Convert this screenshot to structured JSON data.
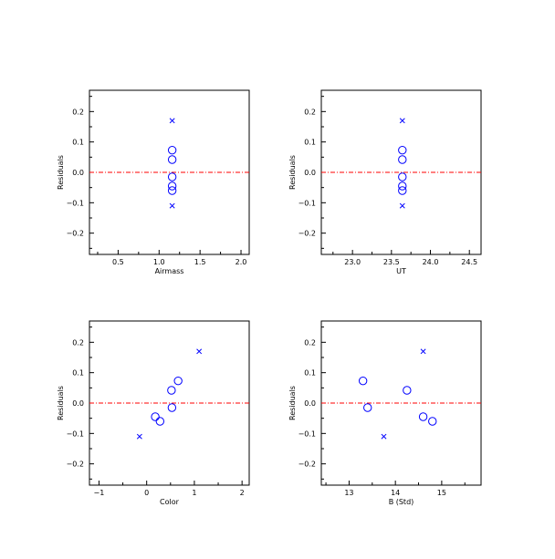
{
  "chart_data": [
    {
      "type": "scatter",
      "xlabel": "Airmass",
      "ylabel": "Residuals",
      "xlim": [
        0.15,
        2.1
      ],
      "ylim": [
        -0.27,
        0.27
      ],
      "xticks": [
        0.5,
        1.0,
        1.5,
        2.0
      ],
      "yticks": [
        0.2,
        0.1,
        0.0,
        -0.1,
        -0.2
      ],
      "reference_line": 0.0,
      "points": [
        {
          "x": 1.16,
          "y": 0.17,
          "marker": "x"
        },
        {
          "x": 1.16,
          "y": 0.073,
          "marker": "o"
        },
        {
          "x": 1.16,
          "y": 0.042,
          "marker": "o"
        },
        {
          "x": 1.16,
          "y": -0.015,
          "marker": "o"
        },
        {
          "x": 1.16,
          "y": -0.045,
          "marker": "o"
        },
        {
          "x": 1.16,
          "y": -0.06,
          "marker": "o"
        },
        {
          "x": 1.16,
          "y": -0.11,
          "marker": "x"
        }
      ]
    },
    {
      "type": "scatter",
      "xlabel": "UT",
      "ylabel": "Residuals",
      "xlim": [
        22.6,
        24.65
      ],
      "ylim": [
        -0.27,
        0.27
      ],
      "xticks": [
        23.0,
        23.5,
        24.0,
        24.5
      ],
      "yticks": [
        0.2,
        0.1,
        0.0,
        -0.1,
        -0.2
      ],
      "reference_line": 0.0,
      "points": [
        {
          "x": 23.64,
          "y": 0.17,
          "marker": "x"
        },
        {
          "x": 23.64,
          "y": 0.073,
          "marker": "o"
        },
        {
          "x": 23.64,
          "y": 0.042,
          "marker": "o"
        },
        {
          "x": 23.64,
          "y": -0.015,
          "marker": "o"
        },
        {
          "x": 23.64,
          "y": -0.045,
          "marker": "o"
        },
        {
          "x": 23.64,
          "y": -0.06,
          "marker": "o"
        },
        {
          "x": 23.64,
          "y": -0.11,
          "marker": "x"
        }
      ]
    },
    {
      "type": "scatter",
      "xlabel": "Color",
      "ylabel": "Residuals",
      "xlim": [
        -1.2,
        2.15
      ],
      "ylim": [
        -0.27,
        0.27
      ],
      "xticks": [
        -1,
        0,
        1,
        2
      ],
      "yticks": [
        0.2,
        0.1,
        0.0,
        -0.1,
        -0.2
      ],
      "reference_line": 0.0,
      "points": [
        {
          "x": 1.1,
          "y": 0.17,
          "marker": "x"
        },
        {
          "x": 0.66,
          "y": 0.073,
          "marker": "o"
        },
        {
          "x": 0.52,
          "y": 0.042,
          "marker": "o"
        },
        {
          "x": 0.53,
          "y": -0.015,
          "marker": "o"
        },
        {
          "x": 0.18,
          "y": -0.045,
          "marker": "o"
        },
        {
          "x": 0.28,
          "y": -0.06,
          "marker": "o"
        },
        {
          "x": -0.15,
          "y": -0.11,
          "marker": "x"
        }
      ]
    },
    {
      "type": "scatter",
      "xlabel": "B (Std)",
      "ylabel": "Residuals",
      "xlim": [
        12.4,
        15.85
      ],
      "ylim": [
        -0.27,
        0.27
      ],
      "xticks": [
        13,
        14,
        15
      ],
      "yticks": [
        0.2,
        0.1,
        0.0,
        -0.1,
        -0.2
      ],
      "reference_line": 0.0,
      "points": [
        {
          "x": 14.6,
          "y": 0.17,
          "marker": "x"
        },
        {
          "x": 13.3,
          "y": 0.073,
          "marker": "o"
        },
        {
          "x": 14.25,
          "y": 0.042,
          "marker": "o"
        },
        {
          "x": 13.4,
          "y": -0.015,
          "marker": "o"
        },
        {
          "x": 14.6,
          "y": -0.045,
          "marker": "o"
        },
        {
          "x": 14.8,
          "y": -0.06,
          "marker": "o"
        },
        {
          "x": 13.75,
          "y": -0.11,
          "marker": "x"
        }
      ]
    }
  ],
  "colors": {
    "marker": "#0000ff",
    "reference_line": "#ff0000",
    "axes": "#000000",
    "background": "#ffffff"
  }
}
